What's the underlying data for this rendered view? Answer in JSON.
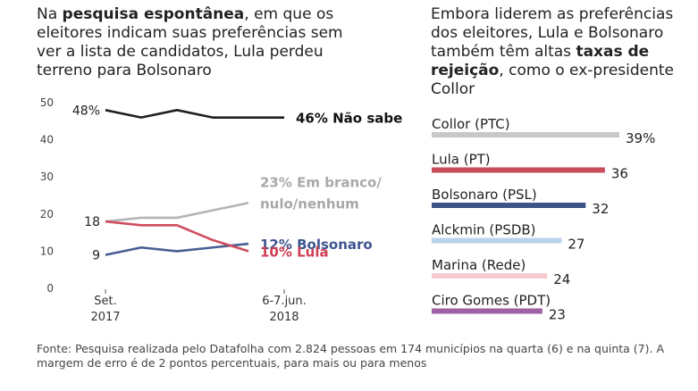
{
  "left": {
    "title_parts": [
      "Na ",
      "pesquisa espontânea",
      ", em que os eleitores indicam suas preferências sem ver a lista de candidatos, Lula perdeu terreno para Bolsonaro"
    ]
  },
  "right": {
    "title_parts": [
      "Embora liderem as preferências dos eleitores, Lula e Bolsonaro também têm altas ",
      "taxas de rejeição",
      ", como o ex-presidente Collor"
    ]
  },
  "footer": "Fonte: Pesquisa realizada pelo Datafolha com 2.824 pessoas em 174 municípios na quarta (6) e na quinta (7). A margem de erro é de 2 pontos percentuais, para mais ou para menos",
  "chart_data": [
    {
      "type": "line",
      "x_ticks": [
        {
          "index": 0,
          "line1": "Set.",
          "line2": "2017"
        },
        {
          "index": 5,
          "line1": "6-7.jun.",
          "line2": "2018"
        }
      ],
      "y_ticks": [
        "0",
        "10",
        "20",
        "30",
        "40",
        "50"
      ],
      "ylim": [
        0,
        50
      ],
      "series": [
        {
          "name": "Não sabe",
          "color": "#1f1f1f",
          "values": [
            48,
            46,
            48,
            46,
            46,
            46
          ],
          "start_label": "48%",
          "end_label_lines": [
            "46% Não sabe"
          ],
          "end_label_color": "#111111"
        },
        {
          "name": "Em branco/nulo/nenhum",
          "color": "#b5b5b5",
          "values": [
            18,
            19,
            19,
            21,
            23
          ],
          "start_label": "",
          "end_label_lines": [
            "23% Em branco/",
            "nulo/nenhum"
          ],
          "end_label_color": "#a8a8a8"
        },
        {
          "name": "Bolsonaro",
          "color": "#485f94",
          "values": [
            9,
            11,
            10,
            11,
            12
          ],
          "start_label": "9",
          "end_label_lines": [
            "12% Bolsonaro"
          ],
          "end_label_color": "#3e5590"
        },
        {
          "name": "Lula",
          "color": "#d14c5e",
          "values": [
            18,
            17,
            17,
            13,
            10
          ],
          "start_label": "18",
          "end_label_lines": [
            "10% Lula"
          ],
          "end_label_color": "#cf3f55"
        }
      ]
    },
    {
      "type": "bar",
      "orientation": "horizontal",
      "categories": [
        "Collor (PTC)",
        "Lula (PT)",
        "Bolsonaro (PSL)",
        "Alckmin (PSDB)",
        "Marina (Rede)",
        "Ciro Gomes (PDT)"
      ],
      "values": [
        39,
        36,
        32,
        27,
        24,
        23
      ],
      "value_labels": [
        "39%",
        "36",
        "32",
        "27",
        "24",
        "23"
      ],
      "colors": [
        "#c8c8c8",
        "#c94a5a",
        "#3d5287",
        "#bcd2ec",
        "#f5c9cf",
        "#9e5fa4"
      ],
      "xlim": [
        0,
        39
      ]
    }
  ]
}
